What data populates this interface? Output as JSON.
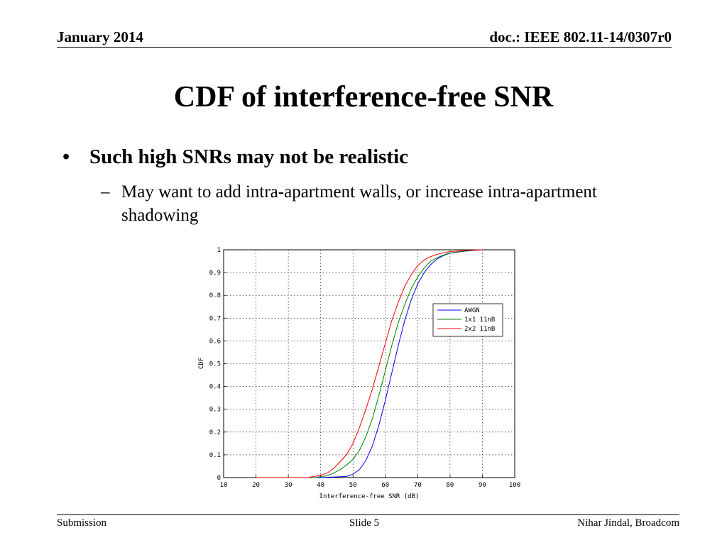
{
  "header": {
    "date": "January 2014",
    "doc_id": "doc.: IEEE 802.11-14/0307r0"
  },
  "slide": {
    "title": "CDF of interference-free SNR",
    "bullet": "Such high SNRs may not be realistic",
    "sub_bullet": "May want to add intra-apartment walls, or increase intra-apartment shadowing"
  },
  "footer": {
    "left": "Submission",
    "center": "Slide 5",
    "right": "Nihar Jindal, Broadcom"
  },
  "chart_data": {
    "type": "line",
    "xlabel": "Interference-free SNR (dB)",
    "ylabel": "CDF",
    "xlim": [
      10,
      100
    ],
    "ylim": [
      0,
      1
    ],
    "grid": true,
    "legend_position": "right",
    "x_ticks": [
      "10",
      "20",
      "30",
      "40",
      "50",
      "60",
      "70",
      "80",
      "90",
      "100"
    ],
    "y_ticks": [
      "0",
      "0.1",
      "0.2",
      "0.3",
      "0.4",
      "0.5",
      "0.6",
      "0.7",
      "0.8",
      "0.9",
      "1"
    ],
    "series": [
      {
        "name": "AWGN",
        "color": "#0000ff",
        "x": [
          20,
          40,
          48,
          50,
          52,
          54,
          56,
          58,
          60,
          62,
          64,
          66,
          68,
          70,
          72,
          74,
          76,
          78,
          80,
          84,
          88,
          90
        ],
        "y": [
          0,
          0,
          0.005,
          0.015,
          0.035,
          0.075,
          0.14,
          0.23,
          0.34,
          0.46,
          0.58,
          0.69,
          0.78,
          0.85,
          0.9,
          0.935,
          0.96,
          0.975,
          0.985,
          0.993,
          0.998,
          1
        ]
      },
      {
        "name": "1x1 11nB",
        "color": "#008000",
        "x": [
          20,
          38,
          42,
          44,
          46,
          48,
          50,
          52,
          54,
          56,
          58,
          60,
          62,
          64,
          66,
          68,
          70,
          72,
          74,
          76,
          78,
          80,
          84,
          88,
          90
        ],
        "y": [
          0,
          0,
          0.008,
          0.02,
          0.035,
          0.055,
          0.08,
          0.12,
          0.18,
          0.26,
          0.36,
          0.47,
          0.58,
          0.68,
          0.76,
          0.83,
          0.88,
          0.92,
          0.95,
          0.965,
          0.977,
          0.986,
          0.994,
          0.998,
          1
        ]
      },
      {
        "name": "2x2 11nB",
        "color": "#ff0000",
        "x": [
          20,
          36,
          40,
          42,
          44,
          46,
          48,
          50,
          52,
          54,
          56,
          58,
          60,
          62,
          64,
          66,
          68,
          70,
          72,
          74,
          76,
          78,
          80,
          84,
          88,
          90
        ],
        "y": [
          0,
          0,
          0.01,
          0.02,
          0.04,
          0.07,
          0.1,
          0.15,
          0.22,
          0.3,
          0.39,
          0.49,
          0.59,
          0.69,
          0.77,
          0.84,
          0.89,
          0.93,
          0.955,
          0.97,
          0.98,
          0.987,
          0.992,
          0.996,
          0.999,
          1
        ]
      }
    ]
  }
}
